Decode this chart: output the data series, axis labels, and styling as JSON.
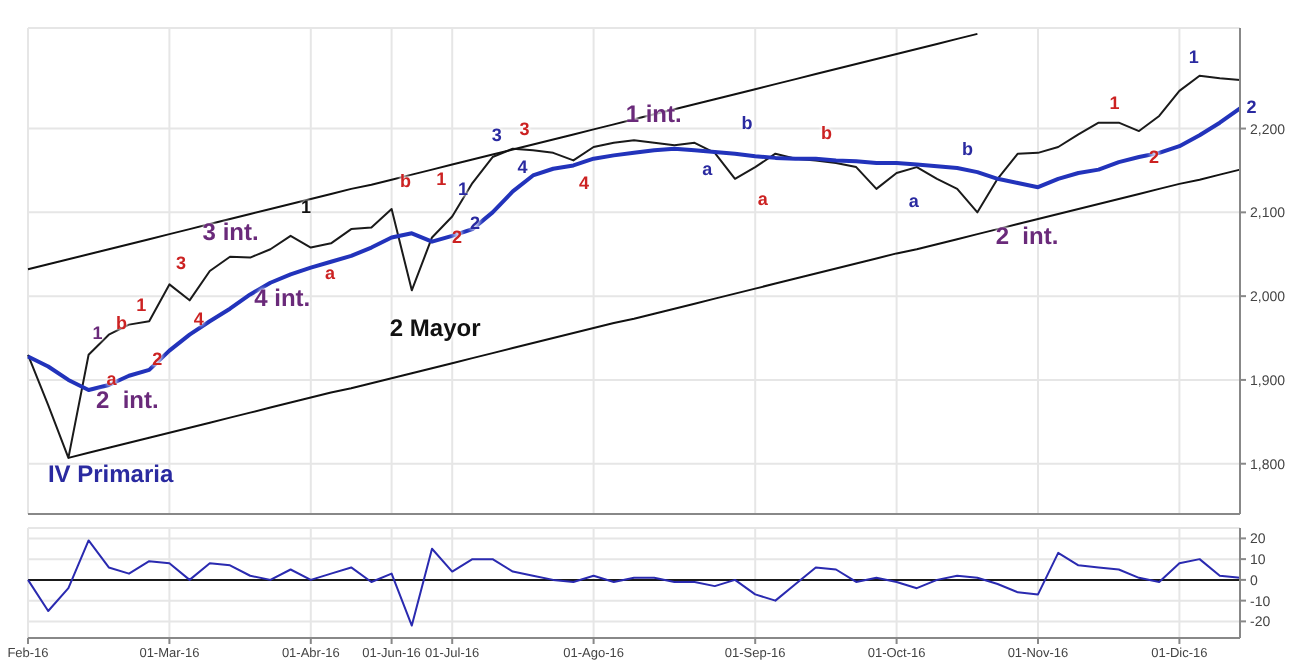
{
  "chart_data": [
    {
      "type": "line",
      "ylim": [
        1740,
        2320
      ],
      "categories": [
        null,
        null,
        null,
        null,
        null,
        null,
        null,
        null,
        null,
        null,
        null,
        null,
        null,
        null,
        null,
        null,
        null,
        null,
        null,
        null,
        null,
        null,
        null,
        null,
        null,
        null,
        null,
        null,
        null,
        null,
        null,
        null,
        null,
        null,
        null,
        null,
        null,
        null,
        null,
        null,
        null,
        null,
        null,
        null,
        null,
        null,
        null,
        null,
        null,
        null,
        null,
        null,
        null,
        null,
        null,
        null,
        null,
        null,
        null,
        null,
        null
      ],
      "yticks": [
        {
          "value": 1800,
          "label": "1,800"
        },
        {
          "value": 1900,
          "label": "1,900"
        },
        {
          "value": 2000,
          "label": "2,000"
        },
        {
          "value": 2100,
          "label": "2,100"
        },
        {
          "value": 2200,
          "label": "2,200"
        }
      ],
      "tick_labels": "y",
      "grid": true,
      "marker": "none",
      "series": [
        {
          "color": "#1a1a1a",
          "values": [
            1930,
            1870,
            1807,
            1930,
            1954,
            1966,
            1970,
            2014,
            1995,
            2030,
            2047,
            2046,
            2056,
            2072,
            2058,
            2063,
            2080,
            2082,
            2104,
            2007,
            2070,
            2095,
            2135,
            2166,
            2176,
            2174,
            2171,
            2162,
            2178,
            2183,
            2186,
            2183,
            2180,
            2183,
            2171,
            2140,
            2154,
            2170,
            2164,
            2162,
            2159,
            2154,
            2128,
            2147,
            2154,
            2140,
            2128,
            2100,
            2140,
            2170,
            2171,
            2178,
            2193,
            2207,
            2207,
            2197,
            2215,
            2245,
            2263,
            2260,
            2258
          ]
        },
        {
          "color": "#2233bb",
          "values": [
            1928,
            1916,
            1900,
            1888,
            1894,
            1905,
            1912,
            1935,
            1954,
            1970,
            1985,
            2002,
            2016,
            2026,
            2034,
            2041,
            2048,
            2058,
            2070,
            2075,
            2065,
            2072,
            2080,
            2100,
            2125,
            2144,
            2152,
            2156,
            2164,
            2168,
            2171,
            2174,
            2176,
            2174,
            2172,
            2170,
            2167,
            2165,
            2164,
            2164,
            2162,
            2161,
            2159,
            2159,
            2157,
            2155,
            2153,
            2148,
            2140,
            2135,
            2130,
            2140,
            2147,
            2151,
            2160,
            2166,
            2171,
            2179,
            2192,
            2207,
            2224
          ]
        },
        {
          "color": "#111111",
          "values": [
            2032,
            2038,
            2044,
            2050,
            2056,
            2062,
            2068,
            2074,
            2080,
            2086,
            2092,
            2098,
            2104,
            2110,
            2116,
            2122,
            2128,
            2133,
            2139,
            2145,
            2151,
            2157,
            2163,
            2169,
            2175,
            2181,
            2187,
            2193,
            2199,
            2205,
            2211,
            2217,
            2223,
            2229,
            2235,
            2241,
            2247,
            2253,
            2259,
            2265,
            2271,
            2277,
            2283,
            2289,
            2295,
            2301,
            2307,
            2313,
            null,
            null,
            null,
            null,
            null,
            null,
            null,
            null,
            null,
            null,
            null,
            null,
            null
          ]
        },
        {
          "color": "#111111",
          "values": [
            null,
            null,
            1807,
            1813,
            1819,
            1825,
            1831,
            1837,
            1843,
            1849,
            1855,
            1861,
            1867,
            1873,
            1879,
            1885,
            1890,
            1896,
            1902,
            1908,
            1914,
            1920,
            1926,
            1932,
            1938,
            1944,
            1950,
            1956,
            1962,
            1968,
            1973,
            1979,
            1985,
            1991,
            1997,
            2003,
            2009,
            2015,
            2021,
            2027,
            2033,
            2039,
            2045,
            2051,
            2056,
            2062,
            2068,
            2074,
            2080,
            2086,
            2092,
            2098,
            2104,
            2110,
            2116,
            2122,
            2128,
            2134,
            2139,
            2145,
            2151
          ]
        }
      ],
      "annotations": [
        "IV Primaria",
        "2  int.",
        "1",
        "b",
        "1",
        "3",
        "a",
        "2",
        "4",
        "4 int.",
        "3 int.",
        "1",
        "a",
        "b",
        "1",
        "1",
        "2",
        "2",
        "2 Mayor",
        "3",
        "3",
        "4",
        "4",
        "1 int.",
        "a",
        "b",
        "b",
        "a",
        "a",
        "b",
        "2  int.",
        "1",
        "2",
        "1",
        "2"
      ]
    },
    {
      "type": "line",
      "ylim": [
        -28,
        25
      ],
      "categories": [
        "Feb-16",
        null,
        null,
        null,
        null,
        null,
        null,
        "01-Mar-16",
        null,
        null,
        null,
        null,
        null,
        null,
        "01-Abr-16",
        null,
        null,
        null,
        "01-Jun-16",
        null,
        null,
        "01-Jul-16",
        null,
        null,
        null,
        null,
        null,
        null,
        "01-Ago-16",
        null,
        null,
        null,
        null,
        null,
        null,
        null,
        "01-Sep-16",
        null,
        null,
        null,
        null,
        null,
        null,
        "01-Oct-16",
        null,
        null,
        null,
        null,
        null,
        null,
        "01-Nov-16",
        null,
        null,
        null,
        null,
        null,
        null,
        "01-Dic-16",
        null,
        null,
        null
      ],
      "yticks": [
        -20,
        -10,
        0,
        10,
        20
      ],
      "grid": true,
      "marker": "none",
      "ref_lines": [
        {
          "axis": "y",
          "value": 0,
          "color": "#1a1a1a"
        }
      ],
      "series": [
        {
          "color": "#2a2ab0",
          "values": [
            0,
            -15,
            -4,
            19,
            6,
            3,
            9,
            8,
            0,
            8,
            7,
            2,
            0,
            5,
            0,
            3,
            6,
            -1,
            3,
            -22,
            15,
            4,
            10,
            10,
            4,
            2,
            0,
            -1,
            2,
            -1,
            1,
            1,
            -1,
            -1,
            -3,
            0,
            -7,
            -10,
            -2,
            6,
            5,
            -1,
            1,
            -1,
            -4,
            0,
            2,
            1,
            -2,
            -6,
            -7,
            13,
            7,
            6,
            5,
            1,
            -1,
            8,
            10,
            2,
            1
          ]
        }
      ]
    }
  ]
}
